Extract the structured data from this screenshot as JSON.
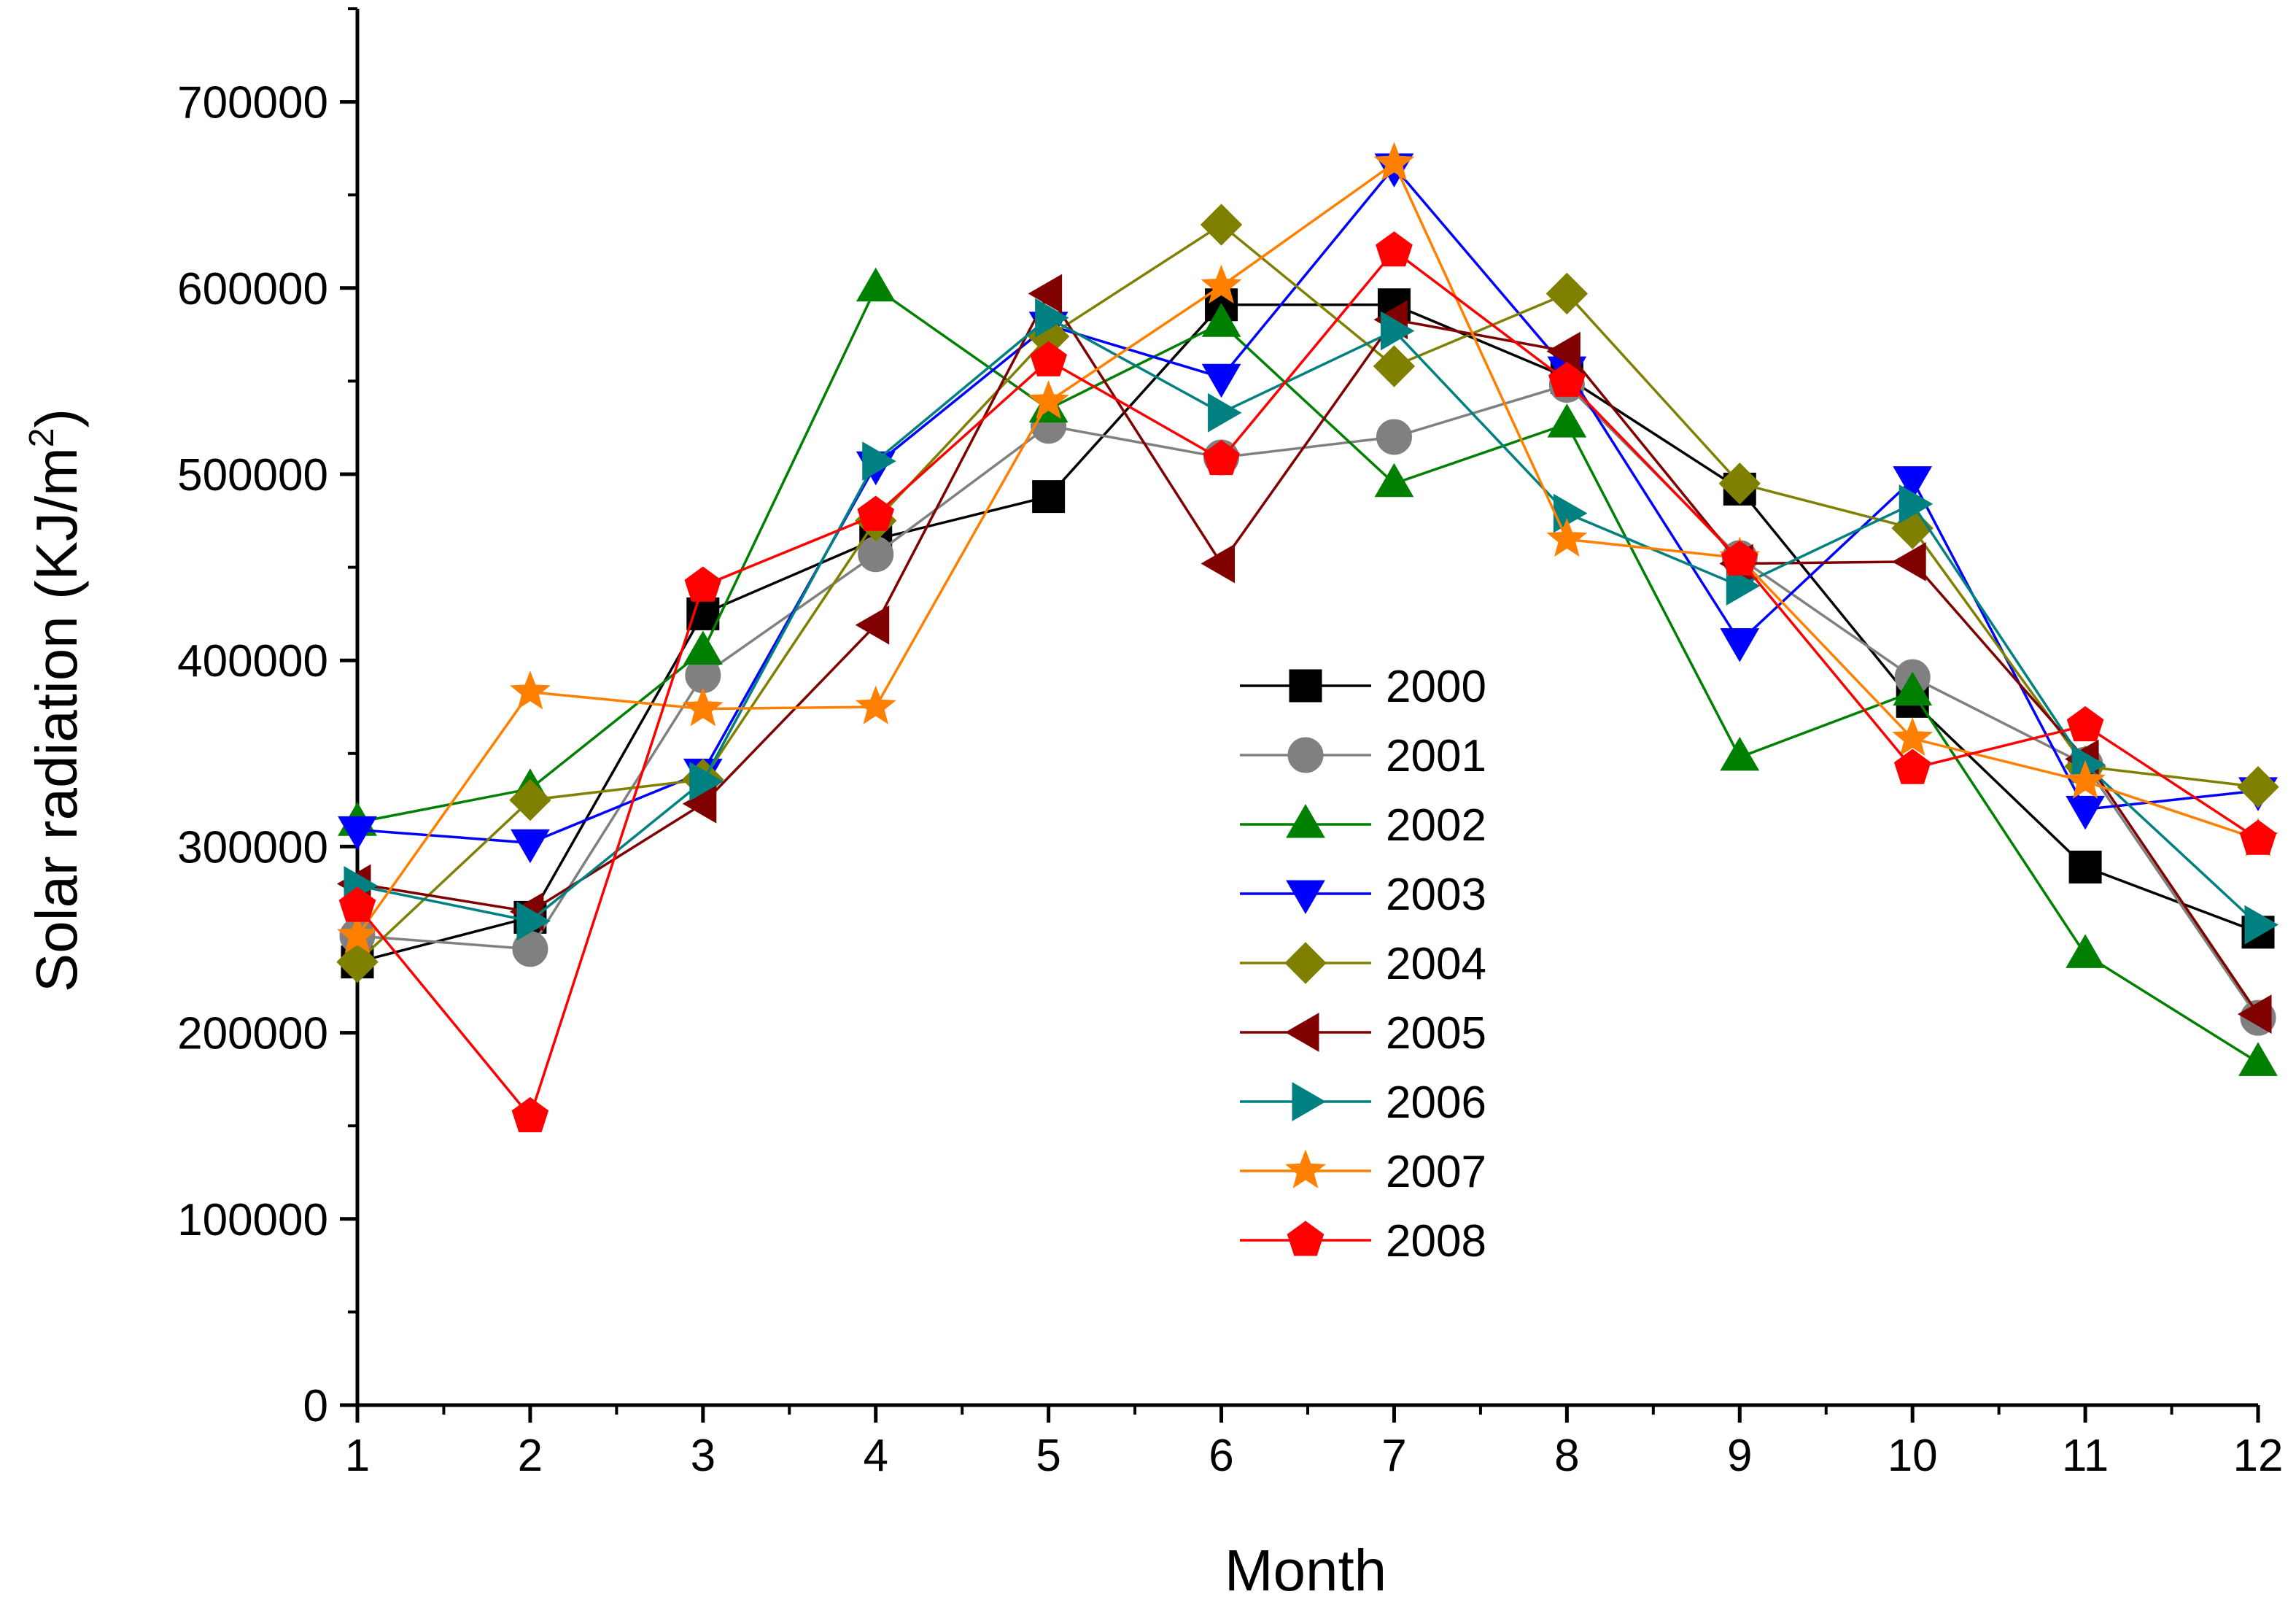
{
  "chart_data": {
    "type": "line",
    "title": "",
    "xlabel": "Month",
    "ylabel": "Solar radiation (KJ/m",
    "ylabel_sup": "2",
    "ylabel_close": ")",
    "x": [
      1,
      2,
      3,
      4,
      5,
      6,
      7,
      8,
      9,
      10,
      11,
      12
    ],
    "xlim": [
      1,
      12
    ],
    "ylim": [
      0,
      750000
    ],
    "x_ticks": [
      1,
      2,
      3,
      4,
      5,
      6,
      7,
      8,
      9,
      10,
      11,
      12
    ],
    "x_tick_labels": [
      "1",
      "2",
      "3",
      "4",
      "5",
      "6",
      "7",
      "8",
      "9",
      "10",
      "11",
      "12"
    ],
    "y_ticks": [
      0,
      100000,
      200000,
      300000,
      400000,
      500000,
      600000,
      700000
    ],
    "y_tick_labels": [
      "0",
      "100000",
      "200000",
      "300000",
      "400000",
      "500000",
      "600000",
      "700000"
    ],
    "grid": false,
    "legend_position": "center",
    "series": [
      {
        "name": "2000",
        "color": "#000000",
        "marker": "square",
        "values": [
          238000,
          262000,
          425000,
          465000,
          488000,
          591000,
          591000,
          552000,
          492000,
          378000,
          289000,
          254000
        ]
      },
      {
        "name": "2001",
        "color": "#808080",
        "marker": "circle",
        "values": [
          252000,
          245000,
          392000,
          457000,
          526000,
          509000,
          520000,
          548000,
          455000,
          391000,
          344000,
          208000
        ]
      },
      {
        "name": "2002",
        "color": "#008000",
        "marker": "triangle-up",
        "values": [
          313000,
          331000,
          405000,
          600000,
          535000,
          581000,
          495000,
          527000,
          348000,
          383000,
          242000,
          184000
        ]
      },
      {
        "name": "2003",
        "color": "#0000ff",
        "marker": "triangle-down",
        "values": [
          309000,
          302000,
          340000,
          505000,
          580000,
          552000,
          665000,
          556000,
          410000,
          497000,
          320000,
          330000
        ]
      },
      {
        "name": "2004",
        "color": "#808000",
        "marker": "diamond",
        "values": [
          238000,
          325000,
          336000,
          475000,
          574000,
          634000,
          558000,
          597000,
          495000,
          471000,
          343000,
          332000
        ]
      },
      {
        "name": "2005",
        "color": "#800000",
        "marker": "triangle-left",
        "values": [
          280000,
          265000,
          323000,
          419000,
          597000,
          452000,
          583000,
          566000,
          452000,
          453000,
          347000,
          210000
        ]
      },
      {
        "name": "2006",
        "color": "#008080",
        "marker": "triangle-right",
        "values": [
          279000,
          260000,
          335000,
          507000,
          584000,
          533000,
          577000,
          479000,
          440000,
          484000,
          344000,
          258000
        ]
      },
      {
        "name": "2007",
        "color": "#ff8000",
        "marker": "star",
        "values": [
          252000,
          383000,
          374000,
          375000,
          539000,
          601000,
          667000,
          465000,
          455000,
          358000,
          335000,
          304000
        ]
      },
      {
        "name": "2008",
        "color": "#ff0000",
        "marker": "pentagon",
        "values": [
          268000,
          155000,
          440000,
          478000,
          561000,
          508000,
          620000,
          550000,
          454000,
          342000,
          365000,
          304000
        ]
      }
    ]
  }
}
